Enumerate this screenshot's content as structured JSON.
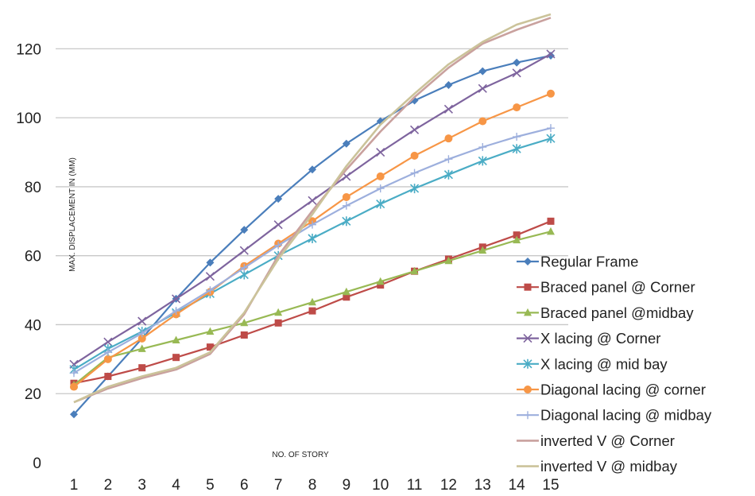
{
  "chart_data": {
    "type": "line",
    "title": "",
    "xlabel": "NO. OF STORY",
    "ylabel": "MAX. DISPLACEMENT IN (MM)",
    "ylim": [
      0,
      130
    ],
    "yticks": [
      0,
      20,
      40,
      60,
      80,
      100,
      120
    ],
    "categories": [
      "1",
      "2",
      "3",
      "4",
      "5",
      "6",
      "7",
      "8",
      "9",
      "10",
      "11",
      "12",
      "13",
      "14",
      "15"
    ],
    "grid": "horizontal",
    "legend_position": "right",
    "series": [
      {
        "name": "Regular Frame",
        "color": "#4A7EBB",
        "marker": "diamond",
        "values": [
          14,
          25,
          36,
          47.5,
          58,
          67.5,
          76.5,
          85,
          92.5,
          99,
          105,
          109.5,
          113.5,
          116,
          118
        ]
      },
      {
        "name": "Braced panel @ Corner",
        "color": "#BE4B48",
        "marker": "square",
        "values": [
          23,
          25,
          27.5,
          30.5,
          33.5,
          37,
          40.5,
          44,
          48,
          51.5,
          55.5,
          59,
          62.5,
          66,
          70
        ]
      },
      {
        "name": "Braced panel @midbay",
        "color": "#98B954",
        "marker": "triangle",
        "values": [
          22.5,
          30.5,
          33,
          35.5,
          38,
          40.5,
          43.5,
          46.5,
          49.5,
          52.5,
          55.5,
          58.5,
          61.5,
          64.5,
          67
        ]
      },
      {
        "name": "X lacing @ Corner",
        "color": "#7E649E",
        "marker": "x",
        "values": [
          28.5,
          35,
          41,
          47.5,
          54,
          61.5,
          69,
          76,
          83,
          90,
          96.5,
          102.5,
          108.5,
          113,
          118.5
        ]
      },
      {
        "name": "X lacing @ mid bay",
        "color": "#4AACC5",
        "marker": "star",
        "values": [
          27,
          33,
          38,
          43.5,
          49,
          54.5,
          60,
          65,
          70,
          75,
          79.5,
          83.5,
          87.5,
          91,
          94
        ]
      },
      {
        "name": "Diagonal lacing @ corner",
        "color": "#F79646",
        "marker": "circle",
        "values": [
          22,
          30,
          36,
          43,
          49.5,
          57,
          63.5,
          70,
          77,
          83,
          89,
          94,
          99,
          103,
          107
        ]
      },
      {
        "name": "Diagonal lacing @ midbay",
        "color": "#9DAFDD",
        "marker": "plus",
        "values": [
          26,
          32,
          37.5,
          44,
          50,
          56.5,
          63,
          69,
          74.5,
          79.5,
          84,
          88,
          91.5,
          94.5,
          97
        ]
      },
      {
        "name": "inverted V @ Corner",
        "color": "#C9A19E",
        "marker": "none",
        "values": [
          17.5,
          21.5,
          24.5,
          27,
          31.5,
          43,
          60,
          73,
          85,
          96,
          106,
          114.5,
          121.5,
          125.5,
          129
        ]
      },
      {
        "name": "inverted V @ midbay",
        "color": "#CBC39A",
        "marker": "none",
        "values": [
          17.5,
          22,
          25,
          27.5,
          32,
          43.5,
          59,
          72,
          86,
          98,
          107,
          115.5,
          122,
          127,
          130
        ]
      }
    ]
  }
}
